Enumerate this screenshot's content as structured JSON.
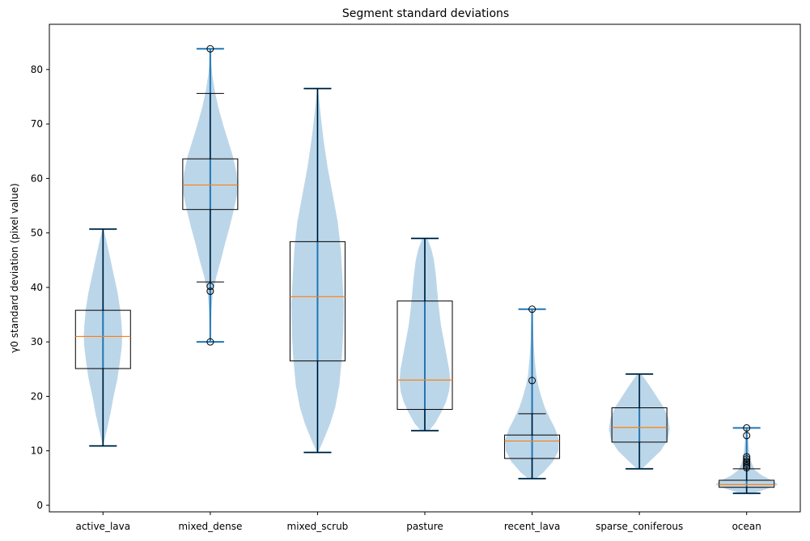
{
  "chart_data": {
    "type": "violin+box",
    "title": "Segment standard deviations",
    "ylabel": "γ0 standard deviation (pixel value)",
    "xlabel": "",
    "ylim": [
      -1.2,
      88.3
    ],
    "yticks": [
      0,
      10,
      20,
      30,
      40,
      50,
      60,
      70,
      80
    ],
    "grid": false,
    "colors": {
      "violin_fill": "#a6c8e1",
      "violin_line": "#1f77b4",
      "box_line": "#000000",
      "median": "#ff7f0e"
    },
    "categories": [
      "active_lava",
      "mixed_dense",
      "mixed_scrub",
      "pasture",
      "recent_lava",
      "sparse_coniferous",
      "ocean"
    ],
    "groups": [
      {
        "category": "active_lava",
        "min": 10.9,
        "max": 50.7,
        "q1": 25.1,
        "median": 31.0,
        "q3": 35.8,
        "whisker_low": 10.9,
        "whisker_high": 50.7,
        "outliers": [],
        "density": [
          [
            10.9,
            0.2
          ],
          [
            12,
            1.5
          ],
          [
            14,
            4
          ],
          [
            17,
            7.5
          ],
          [
            20,
            10.5
          ],
          [
            23,
            14
          ],
          [
            26,
            16.5
          ],
          [
            29,
            18.5
          ],
          [
            31,
            19
          ],
          [
            33,
            18.5
          ],
          [
            36,
            17
          ],
          [
            39,
            14.5
          ],
          [
            42,
            11
          ],
          [
            45,
            7.5
          ],
          [
            48,
            4
          ],
          [
            50,
            1.5
          ],
          [
            50.7,
            0.3
          ]
        ]
      },
      {
        "category": "mixed_dense",
        "min": 30.0,
        "max": 83.8,
        "q1": 54.3,
        "median": 58.8,
        "q3": 63.6,
        "whisker_low": 41.0,
        "whisker_high": 75.6,
        "outliers": [
          30.0,
          39.3,
          40.2,
          83.8
        ],
        "density": [
          [
            30,
            0.3
          ],
          [
            33,
            0.7
          ],
          [
            36,
            1.3
          ],
          [
            39,
            2.5
          ],
          [
            42,
            6
          ],
          [
            45,
            10.5
          ],
          [
            48,
            14.5
          ],
          [
            51,
            19
          ],
          [
            54,
            23
          ],
          [
            57,
            26.5
          ],
          [
            59,
            27
          ],
          [
            61,
            26
          ],
          [
            64,
            22.5
          ],
          [
            67,
            17.5
          ],
          [
            70,
            12.5
          ],
          [
            73,
            8
          ],
          [
            76,
            4.5
          ],
          [
            79,
            2
          ],
          [
            81,
            1
          ],
          [
            83.8,
            0.3
          ]
        ]
      },
      {
        "category": "mixed_scrub",
        "min": 9.7,
        "max": 76.5,
        "q1": 26.5,
        "median": 38.3,
        "q3": 48.4,
        "whisker_low": 9.7,
        "whisker_high": 76.5,
        "outliers": [],
        "density": [
          [
            9.7,
            0.5
          ],
          [
            12,
            6
          ],
          [
            15,
            12.5
          ],
          [
            18,
            17.5
          ],
          [
            22,
            21.5
          ],
          [
            27,
            24
          ],
          [
            32,
            25.5
          ],
          [
            37,
            26
          ],
          [
            42,
            24.5
          ],
          [
            47,
            23
          ],
          [
            52,
            20
          ],
          [
            57,
            15
          ],
          [
            62,
            10
          ],
          [
            67,
            6
          ],
          [
            71,
            3.5
          ],
          [
            74,
            1.8
          ],
          [
            76.5,
            0.4
          ]
        ]
      },
      {
        "category": "pasture",
        "min": 13.7,
        "max": 49.0,
        "q1": 17.6,
        "median": 23.0,
        "q3": 37.5,
        "whisker_low": 13.7,
        "whisker_high": 49.0,
        "outliers": [],
        "density": [
          [
            13.7,
            4
          ],
          [
            15,
            10
          ],
          [
            17,
            16
          ],
          [
            19,
            21
          ],
          [
            21,
            24
          ],
          [
            23,
            25
          ],
          [
            25,
            24
          ],
          [
            27,
            22
          ],
          [
            30,
            19
          ],
          [
            33,
            16
          ],
          [
            36,
            14
          ],
          [
            39,
            12.5
          ],
          [
            42,
            11
          ],
          [
            45,
            9
          ],
          [
            47,
            6.5
          ],
          [
            49,
            2.5
          ]
        ]
      },
      {
        "category": "recent_lava",
        "min": 4.9,
        "max": 36.0,
        "q1": 8.6,
        "median": 11.8,
        "q3": 12.9,
        "whisker_low": 4.9,
        "whisker_high": 16.8,
        "outliers": [
          22.9,
          36.0
        ],
        "density": [
          [
            4.9,
            4
          ],
          [
            6,
            11
          ],
          [
            8,
            20.5
          ],
          [
            10,
            26
          ],
          [
            12,
            26.5
          ],
          [
            14,
            23
          ],
          [
            16,
            17.5
          ],
          [
            18,
            12.5
          ],
          [
            20,
            9
          ],
          [
            22,
            6
          ],
          [
            24,
            4
          ],
          [
            27,
            2.5
          ],
          [
            30,
            1.5
          ],
          [
            33,
            1
          ],
          [
            36,
            0.4
          ]
        ]
      },
      {
        "category": "sparse_coniferous",
        "min": 6.7,
        "max": 24.1,
        "q1": 11.6,
        "median": 14.3,
        "q3": 17.9,
        "whisker_low": 6.7,
        "whisker_high": 24.1,
        "outliers": [],
        "density": [
          [
            6.7,
            2.5
          ],
          [
            8,
            10
          ],
          [
            10,
            21
          ],
          [
            12,
            28
          ],
          [
            14,
            30
          ],
          [
            16,
            28.5
          ],
          [
            18,
            24
          ],
          [
            20,
            17
          ],
          [
            22,
            10
          ],
          [
            24.1,
            2
          ]
        ]
      },
      {
        "category": "ocean",
        "min": 2.2,
        "max": 14.2,
        "q1": 3.3,
        "median": 3.8,
        "q3": 4.6,
        "whisker_low": 2.2,
        "whisker_high": 6.7,
        "outliers": [
          6.9,
          7.2,
          7.5,
          7.8,
          8.1,
          8.5,
          8.9,
          12.8,
          14.2
        ],
        "density": [
          [
            2.2,
            6
          ],
          [
            3,
            20
          ],
          [
            3.8,
            31
          ],
          [
            4.5,
            26
          ],
          [
            5.5,
            15
          ],
          [
            6.5,
            8
          ],
          [
            8,
            4.5
          ],
          [
            10,
            2.5
          ],
          [
            12,
            1.5
          ],
          [
            14.2,
            0.5
          ]
        ]
      }
    ]
  }
}
